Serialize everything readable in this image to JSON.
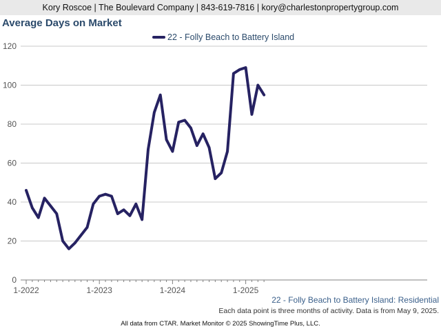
{
  "header": {
    "contact": "Kory Roscoe | The Boulevard Company | 843-619-7816 | kory@charlestonpropertygroup.com"
  },
  "footer": {
    "series_label": "22 - Folly Beach to Battery Island: Residential",
    "note": "Each data point is three months of activity. Data is from May 9, 2025.",
    "credit": "All data from CTAR. Market Monitor © 2025 ShowingTime Plus, LLC."
  },
  "colors": {
    "line": "#262262",
    "grid": "#c8c8c8",
    "axis": "#808080"
  },
  "chart_data": {
    "type": "line",
    "title": "Average Days on Market",
    "xlabel": "",
    "ylabel": "",
    "ylim": [
      0,
      120
    ],
    "yticks": [
      0,
      20,
      40,
      60,
      80,
      100,
      120
    ],
    "grid": true,
    "legend_position": "top-center",
    "x": [
      "2022-01",
      "2022-02",
      "2022-03",
      "2022-04",
      "2022-05",
      "2022-06",
      "2022-07",
      "2022-08",
      "2022-09",
      "2022-10",
      "2022-11",
      "2022-12",
      "2023-01",
      "2023-02",
      "2023-03",
      "2023-04",
      "2023-05",
      "2023-06",
      "2023-07",
      "2023-08",
      "2023-09",
      "2023-10",
      "2023-11",
      "2023-12",
      "2024-01",
      "2024-02",
      "2024-03",
      "2024-04",
      "2024-05",
      "2024-06",
      "2024-07",
      "2024-08",
      "2024-09",
      "2024-10",
      "2024-11",
      "2024-12",
      "2025-01",
      "2025-02",
      "2025-03",
      "2025-04"
    ],
    "xticks": [
      {
        "at": "2022-01",
        "label": "1-2022"
      },
      {
        "at": "2023-01",
        "label": "1-2023"
      },
      {
        "at": "2024-01",
        "label": "1-2024"
      },
      {
        "at": "2025-01",
        "label": "1-2025"
      }
    ],
    "series": [
      {
        "name": "22 - Folly Beach to Battery Island",
        "values": [
          46,
          37,
          32,
          42,
          38,
          34,
          20,
          16,
          19,
          23,
          27,
          39,
          43,
          44,
          43,
          34,
          36,
          33,
          39,
          31,
          67,
          86,
          95,
          72,
          66,
          81,
          82,
          78,
          69,
          75,
          68,
          52,
          55,
          66,
          106,
          108,
          109,
          85,
          100,
          95
        ]
      }
    ]
  }
}
